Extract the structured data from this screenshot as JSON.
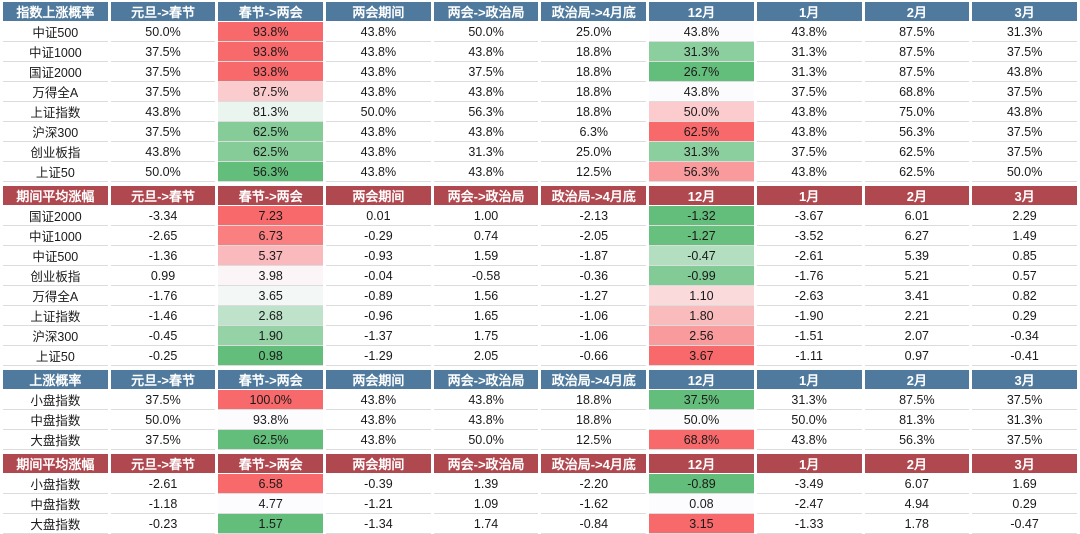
{
  "columns": [
    "元旦->春节",
    "春节->两会",
    "两会期间",
    "两会->政治局",
    "政治局->4月底",
    "12月",
    "1月",
    "2月",
    "3月"
  ],
  "heatmap_column_indexes": [
    1,
    5
  ],
  "colors": {
    "header_blue": "#4f7a9d",
    "header_red": "#b0484f",
    "scale_green": "#63be7b",
    "scale_mid": "#fcfcff",
    "scale_red": "#f8696b",
    "grid_line": "#dcdcdc"
  },
  "chart_data": [
    {
      "type": "table",
      "title": "指数上涨概率",
      "header_style": "blue",
      "heatmap_columns": [
        "春节->两会",
        "12月"
      ],
      "rows": [
        {
          "label": "中证500",
          "values": [
            "50.0%",
            "93.8%",
            "43.8%",
            "50.0%",
            "25.0%",
            "43.8%",
            "43.8%",
            "87.5%",
            "31.3%"
          ]
        },
        {
          "label": "中证1000",
          "values": [
            "37.5%",
            "93.8%",
            "43.8%",
            "43.8%",
            "18.8%",
            "31.3%",
            "31.3%",
            "87.5%",
            "37.5%"
          ]
        },
        {
          "label": "国证2000",
          "values": [
            "37.5%",
            "93.8%",
            "43.8%",
            "37.5%",
            "18.8%",
            "26.7%",
            "31.3%",
            "87.5%",
            "43.8%"
          ]
        },
        {
          "label": "万得全A",
          "values": [
            "37.5%",
            "87.5%",
            "43.8%",
            "43.8%",
            "18.8%",
            "43.8%",
            "37.5%",
            "68.8%",
            "37.5%"
          ]
        },
        {
          "label": "上证指数",
          "values": [
            "43.8%",
            "81.3%",
            "50.0%",
            "56.3%",
            "18.8%",
            "50.0%",
            "43.8%",
            "75.0%",
            "43.8%"
          ]
        },
        {
          "label": "沪深300",
          "values": [
            "37.5%",
            "62.5%",
            "43.8%",
            "43.8%",
            "6.3%",
            "62.5%",
            "43.8%",
            "56.3%",
            "37.5%"
          ]
        },
        {
          "label": "创业板指",
          "values": [
            "43.8%",
            "62.5%",
            "43.8%",
            "31.3%",
            "25.0%",
            "31.3%",
            "37.5%",
            "62.5%",
            "37.5%"
          ]
        },
        {
          "label": "上证50",
          "values": [
            "50.0%",
            "56.3%",
            "43.8%",
            "43.8%",
            "12.5%",
            "56.3%",
            "43.8%",
            "62.5%",
            "50.0%"
          ]
        }
      ]
    },
    {
      "type": "table",
      "title": "期间平均涨幅",
      "header_style": "red",
      "heatmap_columns": [
        "春节->两会",
        "12月"
      ],
      "rows": [
        {
          "label": "国证2000",
          "values": [
            "-3.34",
            "7.23",
            "0.01",
            "1.00",
            "-2.13",
            "-1.32",
            "-3.67",
            "6.01",
            "2.29"
          ]
        },
        {
          "label": "中证1000",
          "values": [
            "-2.65",
            "6.73",
            "-0.29",
            "0.74",
            "-2.05",
            "-1.27",
            "-3.52",
            "6.27",
            "1.49"
          ]
        },
        {
          "label": "中证500",
          "values": [
            "-1.36",
            "5.37",
            "-0.93",
            "1.59",
            "-1.87",
            "-0.47",
            "-2.61",
            "5.39",
            "0.85"
          ]
        },
        {
          "label": "创业板指",
          "values": [
            "0.99",
            "3.98",
            "-0.04",
            "-0.58",
            "-0.36",
            "-0.99",
            "-1.76",
            "5.21",
            "0.57"
          ]
        },
        {
          "label": "万得全A",
          "values": [
            "-1.76",
            "3.65",
            "-0.89",
            "1.56",
            "-1.27",
            "1.10",
            "-2.63",
            "3.41",
            "0.82"
          ]
        },
        {
          "label": "上证指数",
          "values": [
            "-1.46",
            "2.68",
            "-0.96",
            "1.65",
            "-1.06",
            "1.80",
            "-1.90",
            "2.21",
            "0.29"
          ]
        },
        {
          "label": "沪深300",
          "values": [
            "-0.45",
            "1.90",
            "-1.37",
            "1.75",
            "-1.06",
            "2.56",
            "-1.51",
            "2.07",
            "-0.34"
          ]
        },
        {
          "label": "上证50",
          "values": [
            "-0.25",
            "0.98",
            "-1.29",
            "2.05",
            "-0.66",
            "3.67",
            "-1.11",
            "0.97",
            "-0.41"
          ]
        }
      ]
    },
    {
      "type": "table",
      "title": "上涨概率",
      "header_style": "blue",
      "heatmap_columns": [
        "春节->两会",
        "12月"
      ],
      "rows": [
        {
          "label": "小盘指数",
          "values": [
            "37.5%",
            "100.0%",
            "43.8%",
            "43.8%",
            "18.8%",
            "37.5%",
            "31.3%",
            "87.5%",
            "37.5%"
          ]
        },
        {
          "label": "中盘指数",
          "values": [
            "50.0%",
            "93.8%",
            "43.8%",
            "43.8%",
            "18.8%",
            "50.0%",
            "50.0%",
            "81.3%",
            "31.3%"
          ]
        },
        {
          "label": "大盘指数",
          "values": [
            "37.5%",
            "62.5%",
            "43.8%",
            "50.0%",
            "12.5%",
            "68.8%",
            "43.8%",
            "56.3%",
            "37.5%"
          ]
        }
      ]
    },
    {
      "type": "table",
      "title": "期间平均涨幅",
      "header_style": "red",
      "heatmap_columns": [
        "春节->两会",
        "12月"
      ],
      "rows": [
        {
          "label": "小盘指数",
          "values": [
            "-2.61",
            "6.58",
            "-0.39",
            "1.39",
            "-2.20",
            "-0.89",
            "-3.49",
            "6.07",
            "1.69"
          ]
        },
        {
          "label": "中盘指数",
          "values": [
            "-1.18",
            "4.77",
            "-1.21",
            "1.09",
            "-1.62",
            "0.08",
            "-2.47",
            "4.94",
            "0.29"
          ]
        },
        {
          "label": "大盘指数",
          "values": [
            "-0.23",
            "1.57",
            "-1.34",
            "1.74",
            "-0.84",
            "3.15",
            "-1.33",
            "1.78",
            "-0.47"
          ]
        }
      ]
    }
  ]
}
